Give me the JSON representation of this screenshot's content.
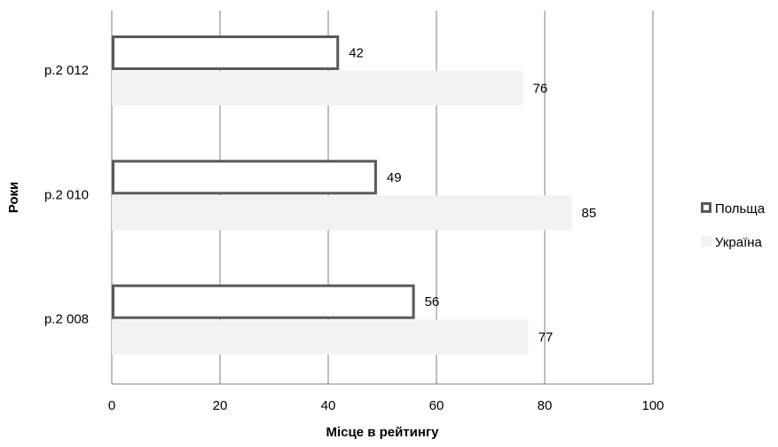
{
  "chart_data": {
    "type": "bar",
    "orientation": "horizontal",
    "categories": [
      "р.2 012",
      "р.2 010",
      "р.2 008"
    ],
    "series": [
      {
        "name": "Польща",
        "values": [
          42,
          49,
          56
        ],
        "fill": "#ffffff",
        "stroke": "#595959"
      },
      {
        "name": "Україна",
        "values": [
          76,
          85,
          77
        ],
        "fill": "#f2f2f2",
        "stroke": "none"
      }
    ],
    "title": "",
    "xlabel": "Місце в рейтингу",
    "ylabel": "Роки",
    "xlim": [
      0,
      100
    ],
    "x_ticks": [
      0,
      20,
      40,
      60,
      80,
      100
    ],
    "grid": "vertical",
    "legend": "right",
    "data_labels": true
  }
}
